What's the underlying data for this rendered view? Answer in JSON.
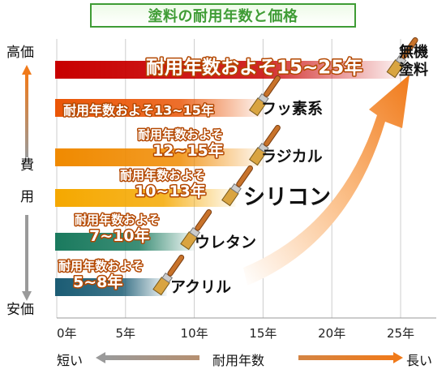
{
  "title": "塗料の耐用年数と価格",
  "yaxis": {
    "top_label": "高価",
    "middle_label_1": "費",
    "middle_label_2": "用",
    "bottom_label": "安価"
  },
  "xaxis": {
    "title": "耐用年数",
    "left_label": "短い",
    "right_label": "長い"
  },
  "colors": {
    "title": "#3f9c35",
    "accent_arrow": "#f07a1a",
    "grid": "#cccccc"
  },
  "chart_data": {
    "type": "bar",
    "orientation": "horizontal",
    "categories": [
      "無機塗料",
      "フッ素系",
      "ラジカル",
      "シリコン",
      "ウレタン",
      "アクリル"
    ],
    "ranges": [
      [
        15,
        25
      ],
      [
        13,
        15
      ],
      [
        12,
        15
      ],
      [
        10,
        13
      ],
      [
        7,
        10
      ],
      [
        5,
        8
      ]
    ],
    "range_labels": [
      "耐用年数およそ15~25年",
      "耐用年数およそ13~15年",
      "耐用年数およそ12~15年",
      "耐用年数およそ10~13年",
      "耐用年数およそ7~10年",
      "耐用年数およそ5~8年"
    ],
    "xticks": [
      "0年",
      "5年",
      "10年",
      "15年",
      "20年",
      "25年"
    ],
    "xlim": [
      0,
      28
    ],
    "grid": true,
    "bar_colors": [
      "#c80000",
      "#ea5506",
      "#f08a00",
      "#f5a800",
      "#1a7a5e",
      "#1b5c74"
    ]
  }
}
